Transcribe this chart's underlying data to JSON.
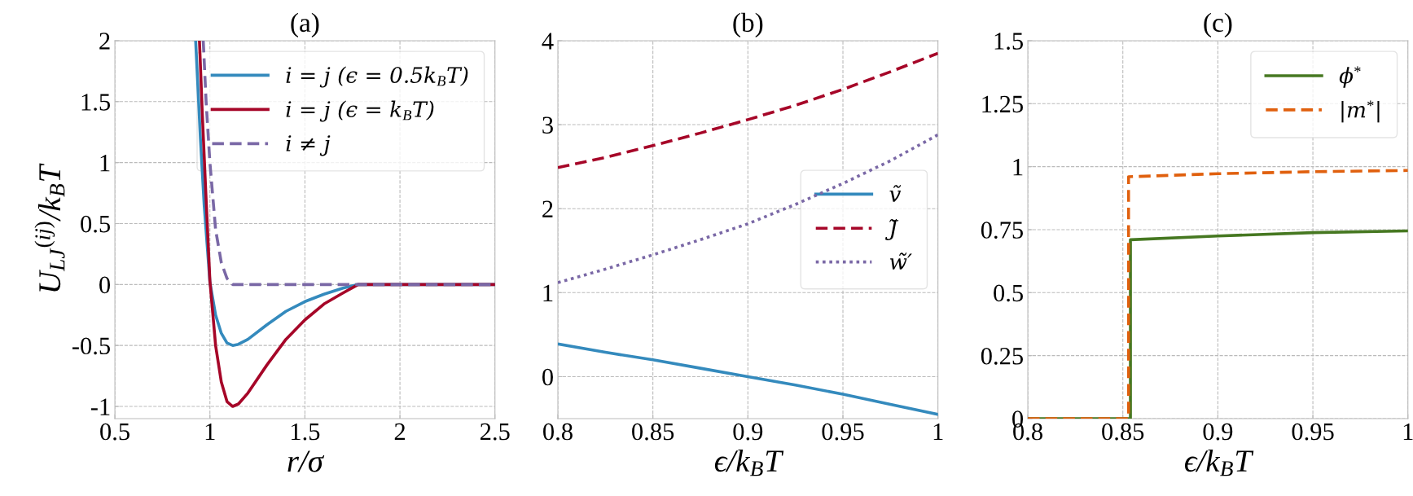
{
  "chart_data": [
    {
      "type": "line",
      "title": "(a)",
      "xlabel": "r/σ",
      "ylabel": "U$_{LJ}$$^{(ij)}$/k$_{B}$T",
      "xlim": [
        0.5,
        2.5
      ],
      "ylim": [
        -1.1,
        2
      ],
      "xticks": [
        0.5,
        1,
        1.5,
        2,
        2.5
      ],
      "yticks": [
        -1,
        -0.5,
        0,
        0.5,
        1,
        1.5,
        2
      ],
      "grid": true,
      "legend": "top right",
      "series": [
        {
          "name": "i = j (ϵ = 0.5k$_{B}$T)",
          "color": "#348abd",
          "line_style": "solid",
          "x": [
            0.925,
            0.95,
            0.97,
            1.0,
            1.03,
            1.06,
            1.09,
            1.12,
            1.15,
            1.2,
            1.3,
            1.4,
            1.5,
            1.6,
            1.7,
            1.78,
            2.5
          ],
          "values": [
            2.0,
            1.2,
            0.65,
            0.02,
            -0.25,
            -0.4,
            -0.48,
            -0.5,
            -0.49,
            -0.45,
            -0.33,
            -0.22,
            -0.14,
            -0.08,
            -0.03,
            0,
            0
          ]
        },
        {
          "name": "i = j (ϵ = k$_{B}$T)",
          "color": "#a60628",
          "line_style": "solid",
          "x": [
            0.945,
            0.96,
            0.98,
            1.0,
            1.03,
            1.06,
            1.09,
            1.12,
            1.15,
            1.2,
            1.3,
            1.4,
            1.5,
            1.6,
            1.7,
            1.78,
            2.5
          ],
          "values": [
            2.0,
            1.4,
            0.7,
            0.03,
            -0.5,
            -0.8,
            -0.96,
            -1.0,
            -0.98,
            -0.89,
            -0.66,
            -0.45,
            -0.29,
            -0.16,
            -0.07,
            0,
            0
          ]
        },
        {
          "name": "i ≠ j",
          "color": "#7a68a6",
          "line_style": "dashed",
          "x": [
            0.965,
            0.98,
            1.0,
            1.03,
            1.06,
            1.09,
            1.12,
            2.5
          ],
          "values": [
            2.0,
            1.5,
            1.0,
            0.45,
            0.18,
            0.05,
            0,
            0
          ]
        }
      ]
    },
    {
      "type": "line",
      "title": "(b)",
      "xlabel": "ϵ/k$_{B}$T",
      "xlim": [
        0.8,
        1
      ],
      "ylim": [
        -0.5,
        4
      ],
      "xticks": [
        0.8,
        0.85,
        0.9,
        0.95,
        1
      ],
      "yticks": [
        0,
        1,
        2,
        3,
        4
      ],
      "grid": true,
      "legend": "right",
      "series": [
        {
          "name": "ṽ",
          "color": "#348abd",
          "line_style": "solid",
          "x": [
            0.8,
            0.825,
            0.85,
            0.875,
            0.9,
            0.925,
            0.95,
            0.975,
            1.0
          ],
          "values": [
            0.39,
            0.29,
            0.2,
            0.1,
            0.0,
            -0.1,
            -0.21,
            -0.33,
            -0.45
          ]
        },
        {
          "name": "J̃",
          "color": "#a60628",
          "line_style": "dashed",
          "x": [
            0.8,
            0.825,
            0.85,
            0.875,
            0.9,
            0.925,
            0.95,
            0.975,
            1.0
          ],
          "values": [
            2.49,
            2.61,
            2.75,
            2.9,
            3.06,
            3.23,
            3.42,
            3.63,
            3.85
          ]
        },
        {
          "name": "w̃′",
          "color": "#7a68a6",
          "line_style": "dotted",
          "x": [
            0.8,
            0.825,
            0.85,
            0.875,
            0.9,
            0.925,
            0.95,
            0.975,
            1.0
          ],
          "values": [
            1.12,
            1.28,
            1.45,
            1.63,
            1.82,
            2.05,
            2.3,
            2.57,
            2.88
          ]
        }
      ]
    },
    {
      "type": "line",
      "title": "(c)",
      "xlabel": "ϵ/k$_{B}$T",
      "xlim": [
        0.8,
        1
      ],
      "ylim": [
        0,
        1.5
      ],
      "xticks": [
        0.8,
        0.85,
        0.9,
        0.95,
        1
      ],
      "yticks": [
        0,
        0.25,
        0.5,
        0.75,
        1,
        1.25,
        1.5
      ],
      "grid": true,
      "legend": "top right",
      "series": [
        {
          "name": "ϕ$^{*}$",
          "color": "#467821",
          "line_style": "solid",
          "x": [
            0.8,
            0.854,
            0.854,
            0.9,
            0.95,
            1.0
          ],
          "values": [
            0,
            0,
            0.71,
            0.725,
            0.738,
            0.745
          ]
        },
        {
          "name": "|m$^{*}$|",
          "color": "#e0600e",
          "line_style": "dashed",
          "x": [
            0.8,
            0.853,
            0.853,
            0.9,
            0.95,
            1.0
          ],
          "values": [
            0,
            0,
            0.96,
            0.972,
            0.98,
            0.985
          ]
        }
      ]
    }
  ]
}
